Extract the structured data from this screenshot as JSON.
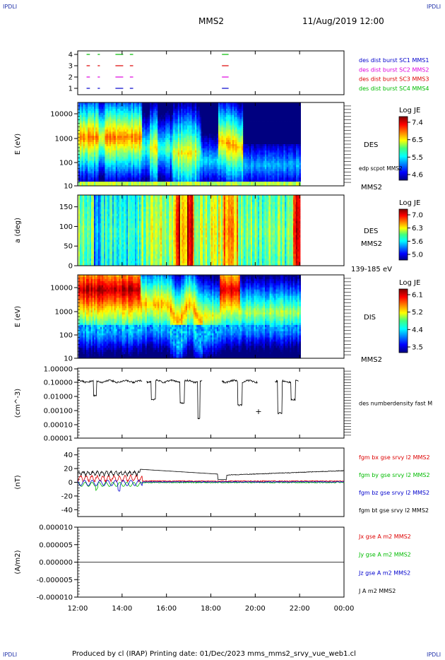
{
  "corners": {
    "tl": "IPDLI",
    "tr": "IPDLI",
    "bl": "IPDLI",
    "br": "IPDLI"
  },
  "header": {
    "spacecraft": "MMS2",
    "datetime": "11/Aug/2019 12:00"
  },
  "footer": {
    "text": "Produced by cl (IRAP)   Printing date: 01/Dec/2023   mms_mms2_srvy_vue_web1.cl"
  },
  "time_axis": {
    "ticks": [
      "12:00",
      "14:00",
      "16:00",
      "18:00",
      "20:00",
      "22:00",
      "00:00"
    ]
  },
  "colors": {
    "blue": "#0000cc",
    "red": "#dd0000",
    "green": "#00bb00",
    "magenta": "#dd00dd",
    "black": "#000000"
  },
  "chart_data": [
    {
      "type": "scatter",
      "id": "burst",
      "yticks": [
        "4",
        "3",
        "2",
        "1"
      ],
      "legend": [
        {
          "text": "des dist burst SC1 MMS1",
          "color": "#0000cc"
        },
        {
          "text": "des dist burst SC2 MMS2",
          "color": "#dd00dd"
        },
        {
          "text": "des dist burst SC3 MMS3",
          "color": "#dd0000"
        },
        {
          "text": "des dist burst SC4 MMS4",
          "color": "#00bb00"
        }
      ],
      "intervals_hours": [
        [
          12.4,
          12.55
        ],
        [
          12.9,
          13.0
        ],
        [
          13.7,
          14.05
        ],
        [
          14.35,
          14.5
        ],
        [
          18.5,
          18.8
        ]
      ]
    },
    {
      "type": "heatmap",
      "id": "des_energy",
      "ylabel": "E (eV)",
      "yticks": [
        "10000",
        "1000",
        "100",
        "10"
      ],
      "colorbar": {
        "title": "Log JE",
        "ticks": [
          "7.4",
          "6.5",
          "5.5",
          "4.6"
        ]
      },
      "right_label": "DES",
      "right_label2": "edp scpot MMS2",
      "right_label3": "MMS2"
    },
    {
      "type": "heatmap",
      "id": "des_pitch",
      "ylabel": "a (deg)",
      "yticks": [
        "150",
        "100",
        "50",
        "0"
      ],
      "colorbar": {
        "title": "Log JE",
        "ticks": [
          "7.0",
          "6.3",
          "5.6",
          "5.0"
        ]
      },
      "right_label": "DES",
      "right_label2": "MMS2",
      "right_label3": "139-185 eV"
    },
    {
      "type": "heatmap",
      "id": "dis_energy",
      "ylabel": "E (eV)",
      "yticks": [
        "10000",
        "1000",
        "100",
        "10"
      ],
      "colorbar": {
        "title": "Log JE",
        "ticks": [
          "6.1",
          "5.2",
          "4.4",
          "3.5"
        ]
      },
      "right_label": "DIS",
      "right_label3": "MMS2"
    },
    {
      "type": "line",
      "id": "density",
      "ylabel": "(cm^-3)",
      "yticks": [
        "1.00000",
        "0.10000",
        "0.01000",
        "0.00100",
        "0.00010",
        "0.00001"
      ],
      "legend": [
        {
          "text": "des numberdensity fast M",
          "color": "#000000"
        }
      ]
    },
    {
      "type": "line",
      "id": "fgm",
      "ylabel": "(nT)",
      "yticks": [
        "40",
        "20",
        "0",
        "-20",
        "-40"
      ],
      "ylim": [
        -50,
        50
      ],
      "legend": [
        {
          "text": "fgm bx gse srvy l2 MMS2",
          "color": "#dd0000"
        },
        {
          "text": "fgm by gse srvy l2 MMS2",
          "color": "#00bb00"
        },
        {
          "text": "fgm bz gse srvy l2 MMS2",
          "color": "#0000cc"
        },
        {
          "text": "fgm bt gse srvy l2 MMS2",
          "color": "#000000"
        }
      ]
    },
    {
      "type": "line",
      "id": "current",
      "ylabel": "(A/m2)",
      "yticks": [
        "0.000010",
        "0.000005",
        "0.000000",
        "-0.000005",
        "-0.000010"
      ],
      "ylim": [
        -1e-05,
        1e-05
      ],
      "legend": [
        {
          "text": "Jx gse A m2 MMS2",
          "color": "#dd0000"
        },
        {
          "text": "Jy gse A m2 MMS2",
          "color": "#00bb00"
        },
        {
          "text": "Jz gse A m2 MMS2",
          "color": "#0000cc"
        },
        {
          "text": "J A m2 MMS2",
          "color": "#000000"
        }
      ]
    }
  ]
}
